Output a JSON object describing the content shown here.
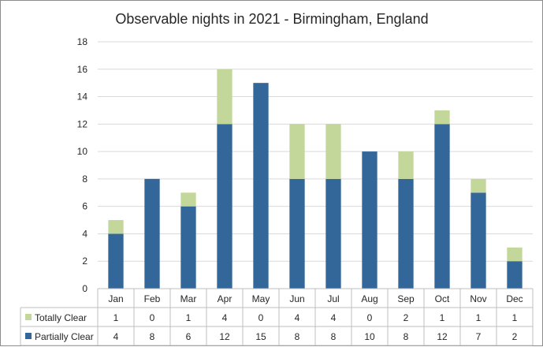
{
  "chart_data": {
    "type": "bar",
    "stacked": true,
    "title": "Observable nights in 2021 - Birmingham, England",
    "categories": [
      "Jan",
      "Feb",
      "Mar",
      "Apr",
      "May",
      "Jun",
      "Jul",
      "Aug",
      "Sep",
      "Oct",
      "Nov",
      "Dec"
    ],
    "series": [
      {
        "name": "Totally Clear",
        "color": "#c4d79b",
        "values": [
          1,
          0,
          1,
          4,
          0,
          4,
          4,
          0,
          2,
          1,
          1,
          1
        ]
      },
      {
        "name": "Partially Clear",
        "color": "#336699",
        "values": [
          4,
          8,
          6,
          12,
          15,
          8,
          8,
          10,
          8,
          12,
          7,
          2
        ]
      }
    ],
    "ylim": [
      0,
      18
    ],
    "yticks": [
      0,
      2,
      4,
      6,
      8,
      10,
      12,
      14,
      16,
      18
    ],
    "grid": true,
    "legend": "data-table-bottom",
    "stack_order": [
      "Partially Clear",
      "Totally Clear"
    ]
  }
}
